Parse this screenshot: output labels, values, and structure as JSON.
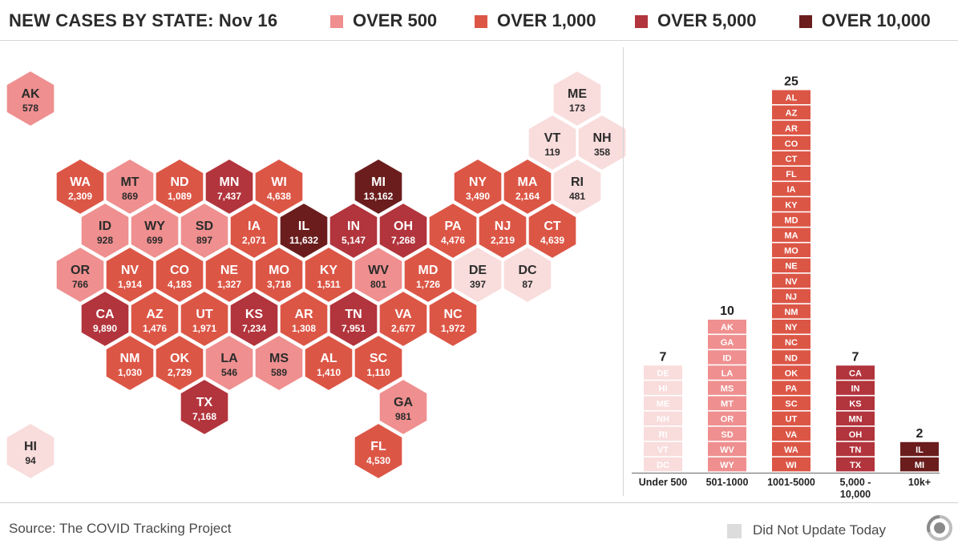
{
  "header": {
    "title": "NEW CASES BY STATE: Nov 16",
    "legend": [
      {
        "label": "OVER 500",
        "color": "#ef8f8f"
      },
      {
        "label": "OVER 1,000",
        "color": "#dc5646"
      },
      {
        "label": "OVER 5,000",
        "color": "#b2343c"
      },
      {
        "label": "OVER 10,000",
        "color": "#6b1d1d"
      }
    ]
  },
  "colors": {
    "under500": "#f9dcdc",
    "over500": "#ef8f8f",
    "over1000": "#dc5646",
    "over5000": "#b2343c",
    "over10000": "#6b1d1d",
    "not_updated": "#dcdcdc"
  },
  "chart_data": [
    {
      "type": "heatmap",
      "description_kind": "hex tile map",
      "tiles": [
        {
          "state": "AK",
          "value": 578,
          "label": "578",
          "row": 0,
          "col": 0
        },
        {
          "state": "ME",
          "value": 173,
          "label": "173",
          "row": 0,
          "col": 11
        },
        {
          "state": "VT",
          "value": 119,
          "label": "119",
          "row": 1,
          "col": 10
        },
        {
          "state": "NH",
          "value": 358,
          "label": "358",
          "row": 1,
          "col": 11
        },
        {
          "state": "WA",
          "value": 2309,
          "label": "2,309",
          "row": 2,
          "col": 1
        },
        {
          "state": "MT",
          "value": 869,
          "label": "869",
          "row": 2,
          "col": 2
        },
        {
          "state": "ND",
          "value": 1089,
          "label": "1,089",
          "row": 2,
          "col": 3
        },
        {
          "state": "MN",
          "value": 7437,
          "label": "7,437",
          "row": 2,
          "col": 4
        },
        {
          "state": "WI",
          "value": 4638,
          "label": "4,638",
          "row": 2,
          "col": 5
        },
        {
          "state": "MI",
          "value": 13162,
          "label": "13,162",
          "row": 2,
          "col": 7
        },
        {
          "state": "NY",
          "value": 3490,
          "label": "3,490",
          "row": 2,
          "col": 9
        },
        {
          "state": "MA",
          "value": 2164,
          "label": "2,164",
          "row": 2,
          "col": 10
        },
        {
          "state": "RI",
          "value": 481,
          "label": "481",
          "row": 2,
          "col": 11
        },
        {
          "state": "ID",
          "value": 928,
          "label": "928",
          "row": 3,
          "col": 1
        },
        {
          "state": "WY",
          "value": 699,
          "label": "699",
          "row": 3,
          "col": 2
        },
        {
          "state": "SD",
          "value": 897,
          "label": "897",
          "row": 3,
          "col": 3
        },
        {
          "state": "IA",
          "value": 2071,
          "label": "2,071",
          "row": 3,
          "col": 4
        },
        {
          "state": "IL",
          "value": 11632,
          "label": "11,632",
          "row": 3,
          "col": 5
        },
        {
          "state": "IN",
          "value": 5147,
          "label": "5,147",
          "row": 3,
          "col": 6
        },
        {
          "state": "OH",
          "value": 7268,
          "label": "7,268",
          "row": 3,
          "col": 7
        },
        {
          "state": "PA",
          "value": 4476,
          "label": "4,476",
          "row": 3,
          "col": 8
        },
        {
          "state": "NJ",
          "value": 2219,
          "label": "2,219",
          "row": 3,
          "col": 9
        },
        {
          "state": "CT",
          "value": 4639,
          "label": "4,639",
          "row": 3,
          "col": 10
        },
        {
          "state": "OR",
          "value": 766,
          "label": "766",
          "row": 4,
          "col": 1
        },
        {
          "state": "NV",
          "value": 1914,
          "label": "1,914",
          "row": 4,
          "col": 2
        },
        {
          "state": "CO",
          "value": 4183,
          "label": "4,183",
          "row": 4,
          "col": 3
        },
        {
          "state": "NE",
          "value": 1327,
          "label": "1,327",
          "row": 4,
          "col": 4
        },
        {
          "state": "MO",
          "value": 3718,
          "label": "3,718",
          "row": 4,
          "col": 5
        },
        {
          "state": "KY",
          "value": 1511,
          "label": "1,511",
          "row": 4,
          "col": 6
        },
        {
          "state": "WV",
          "value": 801,
          "label": "801",
          "row": 4,
          "col": 7
        },
        {
          "state": "MD",
          "value": 1726,
          "label": "1,726",
          "row": 4,
          "col": 8
        },
        {
          "state": "DE",
          "value": 397,
          "label": "397",
          "row": 4,
          "col": 9
        },
        {
          "state": "DC",
          "value": 87,
          "label": "87",
          "row": 4,
          "col": 10
        },
        {
          "state": "CA",
          "value": 9890,
          "label": "9,890",
          "row": 5,
          "col": 1
        },
        {
          "state": "AZ",
          "value": 1476,
          "label": "1,476",
          "row": 5,
          "col": 2
        },
        {
          "state": "UT",
          "value": 1971,
          "label": "1,971",
          "row": 5,
          "col": 3
        },
        {
          "state": "KS",
          "value": 7234,
          "label": "7,234",
          "row": 5,
          "col": 4
        },
        {
          "state": "AR",
          "value": 1308,
          "label": "1,308",
          "row": 5,
          "col": 5
        },
        {
          "state": "TN",
          "value": 7951,
          "label": "7,951",
          "row": 5,
          "col": 6
        },
        {
          "state": "VA",
          "value": 2677,
          "label": "2,677",
          "row": 5,
          "col": 7
        },
        {
          "state": "NC",
          "value": 1972,
          "label": "1,972",
          "row": 5,
          "col": 8
        },
        {
          "state": "NM",
          "value": 1030,
          "label": "1,030",
          "row": 6,
          "col": 2
        },
        {
          "state": "OK",
          "value": 2729,
          "label": "2,729",
          "row": 6,
          "col": 3
        },
        {
          "state": "LA",
          "value": 546,
          "label": "546",
          "row": 6,
          "col": 4
        },
        {
          "state": "MS",
          "value": 589,
          "label": "589",
          "row": 6,
          "col": 5
        },
        {
          "state": "AL",
          "value": 1410,
          "label": "1,410",
          "row": 6,
          "col": 6
        },
        {
          "state": "SC",
          "value": 1110,
          "label": "1,110",
          "row": 6,
          "col": 7
        },
        {
          "state": "TX",
          "value": 7168,
          "label": "7,168",
          "row": 7,
          "col": 3
        },
        {
          "state": "GA",
          "value": 981,
          "label": "981",
          "row": 7,
          "col": 7
        },
        {
          "state": "HI",
          "value": 94,
          "label": "94",
          "row": 8,
          "col": 0
        },
        {
          "state": "FL",
          "value": 4530,
          "label": "4,530",
          "row": 8,
          "col": 7
        }
      ]
    },
    {
      "type": "bar",
      "categories": [
        "Under 500",
        "501-1000",
        "1001-5000",
        "5,000 - 10,000",
        "10k+"
      ],
      "category_lines": [
        [
          "Under 500"
        ],
        [
          "501-1000"
        ],
        [
          "1001-5000"
        ],
        [
          "5,000 -",
          "10,000"
        ],
        [
          "10k+"
        ]
      ],
      "values": [
        7,
        10,
        25,
        7,
        2
      ],
      "count_labels": [
        "7",
        "10",
        "25",
        "7",
        "2"
      ],
      "bar_colors": [
        "#f9dcdc",
        "#ef8f8f",
        "#dc5646",
        "#b2343c",
        "#6b1d1d"
      ],
      "stacks": [
        [
          "DE",
          "HI",
          "ME",
          "NH",
          "RI",
          "VT",
          "DC"
        ],
        [
          "AK",
          "GA",
          "ID",
          "LA",
          "MS",
          "MT",
          "OR",
          "SD",
          "WV",
          "WY"
        ],
        [
          "AL",
          "AZ",
          "AR",
          "CO",
          "CT",
          "FL",
          "IA",
          "KY",
          "MD",
          "MA",
          "MO",
          "NE",
          "NV",
          "NJ",
          "NM",
          "NY",
          "NC",
          "ND",
          "OK",
          "PA",
          "SC",
          "UT",
          "VA",
          "WA",
          "WI"
        ],
        [
          "CA",
          "IN",
          "KS",
          "MN",
          "OH",
          "TN",
          "TX"
        ],
        [
          "IL",
          "MI"
        ]
      ],
      "ylim": [
        0,
        25
      ]
    }
  ],
  "footer": {
    "source": "Source: The COVID Tracking Project",
    "legend_label": "Did Not Update Today",
    "logo_icon": "covid-tracking-project-logo-icon"
  }
}
